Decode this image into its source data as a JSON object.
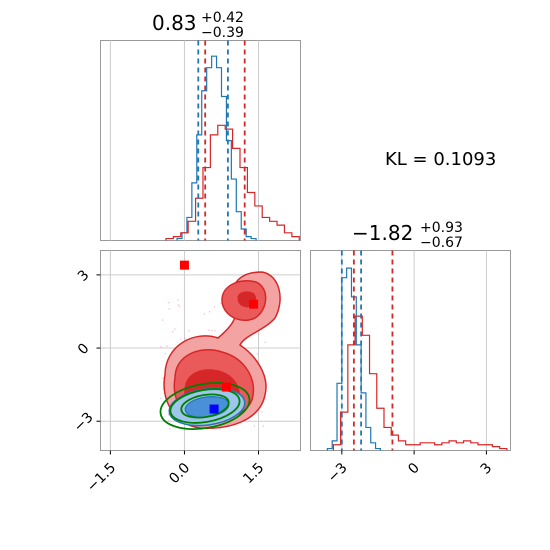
{
  "chart_data": [
    {
      "panel": "top-left marginal histogram (parameter 1)",
      "type": "histogram",
      "title": {
        "value": "0.83",
        "plus": "+0.42",
        "minus": "−0.39"
      },
      "xlim": [
        -1.7,
        2.35
      ],
      "series": [
        {
          "name": "",
          "color": "#1f77b4",
          "quantiles": [
            0.28,
            0.88
          ],
          "bins_x": [
            -0.1,
            0.0,
            0.1,
            0.2,
            0.3,
            0.4,
            0.5,
            0.6,
            0.7,
            0.8,
            0.9,
            1.0,
            1.1,
            1.2,
            1.3,
            1.4
          ],
          "bins_y": [
            0.01,
            0.04,
            0.12,
            0.3,
            0.55,
            0.78,
            0.9,
            0.96,
            0.9,
            0.75,
            0.52,
            0.32,
            0.15,
            0.06,
            0.02,
            0.01
          ]
        },
        {
          "name": "",
          "color": "#d62728",
          "quantiles": [
            0.42,
            1.22
          ],
          "bins_x": [
            -0.3,
            -0.15,
            0.0,
            0.15,
            0.3,
            0.45,
            0.6,
            0.75,
            0.9,
            1.05,
            1.2,
            1.35,
            1.5,
            1.65,
            1.8,
            1.95,
            2.1,
            2.25
          ],
          "bins_y": [
            0.01,
            0.02,
            0.04,
            0.1,
            0.22,
            0.38,
            0.55,
            0.6,
            0.58,
            0.48,
            0.38,
            0.25,
            0.18,
            0.12,
            0.1,
            0.08,
            0.04,
            0.02
          ]
        }
      ],
      "grid": true
    },
    {
      "panel": "bottom-left 2D contour",
      "type": "contour",
      "xlim": [
        -1.7,
        2.35
      ],
      "ylim": [
        -4.2,
        4.0
      ],
      "xticks": [
        -1.5,
        0.0,
        1.5
      ],
      "xtick_labels": [
        "−1.5",
        "0.0",
        "1.5"
      ],
      "yticks": [
        3,
        0,
        -3
      ],
      "ytick_labels": [
        "3",
        "0",
        "−3"
      ],
      "markers": [
        {
          "x": 0.0,
          "y": 3.4,
          "color": "#ff0000"
        },
        {
          "x": 1.4,
          "y": 1.8,
          "color": "#ff0000"
        },
        {
          "x": 0.85,
          "y": -1.6,
          "color": "#ff0000"
        },
        {
          "x": 0.6,
          "y": -2.5,
          "color": "#0000ff"
        }
      ],
      "grid": true
    },
    {
      "panel": "bottom-right marginal histogram (parameter 2)",
      "type": "histogram",
      "title": {
        "value": "−1.82",
        "plus": "+0.93",
        "minus": "−0.67"
      },
      "xlim": [
        -4.3,
        4.0
      ],
      "xticks": [
        -3,
        0,
        3
      ],
      "xtick_labels": [
        "−3",
        "0",
        "3"
      ],
      "series": [
        {
          "name": "",
          "color": "#1f77b4",
          "quantiles": [
            -3.0,
            -2.2
          ],
          "bins_x": [
            -3.5,
            -3.3,
            -3.1,
            -2.9,
            -2.7,
            -2.5,
            -2.3,
            -2.1,
            -1.9,
            -1.7,
            -1.5
          ],
          "bins_y": [
            0.01,
            0.05,
            0.35,
            0.9,
            0.95,
            0.8,
            0.55,
            0.3,
            0.12,
            0.04,
            0.01
          ]
        },
        {
          "name": "",
          "color": "#d62728",
          "quantiles": [
            -2.5,
            -0.9
          ],
          "bins_x": [
            -3.2,
            -2.9,
            -2.6,
            -2.3,
            -2.0,
            -1.7,
            -1.4,
            -1.1,
            -0.8,
            -0.5,
            -0.2,
            0.1,
            0.4,
            0.7,
            1.0,
            1.3,
            1.6,
            1.9,
            2.2,
            2.5,
            2.8,
            3.1,
            3.4,
            3.7
          ],
          "bins_y": [
            0.03,
            0.2,
            0.55,
            0.7,
            0.6,
            0.4,
            0.22,
            0.12,
            0.08,
            0.05,
            0.03,
            0.03,
            0.04,
            0.04,
            0.03,
            0.04,
            0.05,
            0.04,
            0.05,
            0.04,
            0.03,
            0.03,
            0.02,
            0.01
          ]
        }
      ],
      "grid": true
    }
  ],
  "annotation": {
    "text": "KL = 0.1093"
  }
}
